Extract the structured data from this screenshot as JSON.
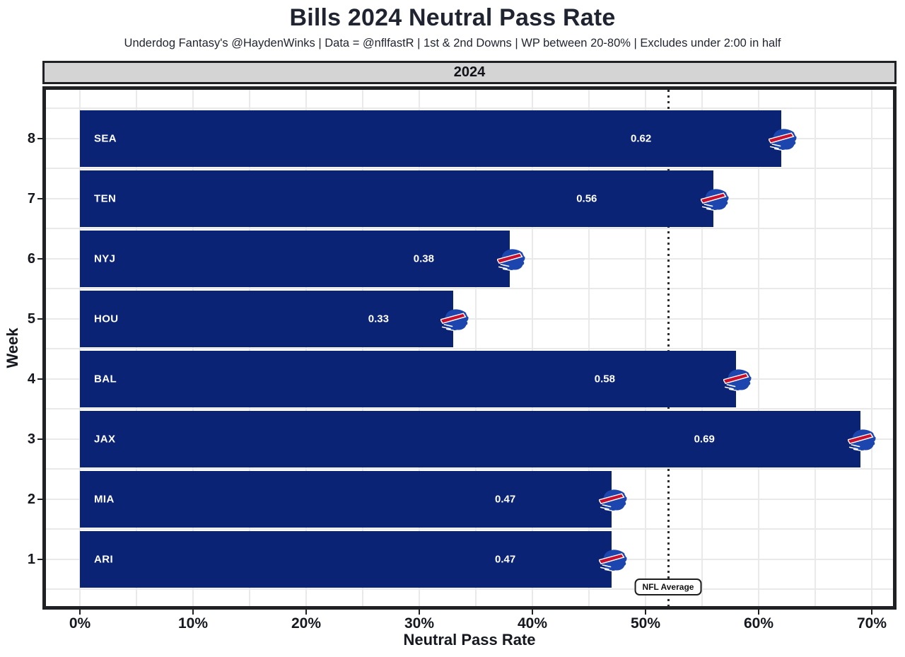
{
  "header": {
    "title": "Bills 2024 Neutral Pass Rate",
    "subtitle": "Underdog Fantasy's @HaydenWinks | Data = @nflfastR | 1st & 2nd Downs | WP between 20-80% | Excludes under 2:00 in half"
  },
  "facet": {
    "label": "2024"
  },
  "chart_data": {
    "type": "bar",
    "orientation": "horizontal",
    "title": "Bills 2024 Neutral Pass Rate",
    "xlabel": "Neutral Pass Rate",
    "ylabel": "Week",
    "xlim": [
      -0.03,
      0.72
    ],
    "x_major_step": 0.1,
    "x_minor_step": 0.05,
    "grid": true,
    "x_ticks": [
      {
        "label": "0%",
        "value": 0.0
      },
      {
        "label": "10%",
        "value": 0.1
      },
      {
        "label": "20%",
        "value": 0.2
      },
      {
        "label": "30%",
        "value": 0.3
      },
      {
        "label": "40%",
        "value": 0.4
      },
      {
        "label": "50%",
        "value": 0.5
      },
      {
        "label": "60%",
        "value": 0.6
      },
      {
        "label": "70%",
        "value": 0.7
      }
    ],
    "y_ticks": [
      "8",
      "7",
      "6",
      "5",
      "4",
      "3",
      "2",
      "1"
    ],
    "bars": [
      {
        "week": 8,
        "opponent": "SEA",
        "value": 0.62,
        "value_label": "0.62"
      },
      {
        "week": 7,
        "opponent": "TEN",
        "value": 0.56,
        "value_label": "0.56"
      },
      {
        "week": 6,
        "opponent": "NYJ",
        "value": 0.38,
        "value_label": "0.38"
      },
      {
        "week": 5,
        "opponent": "HOU",
        "value": 0.33,
        "value_label": "0.33"
      },
      {
        "week": 4,
        "opponent": "BAL",
        "value": 0.58,
        "value_label": "0.58"
      },
      {
        "week": 3,
        "opponent": "JAX",
        "value": 0.69,
        "value_label": "0.69"
      },
      {
        "week": 2,
        "opponent": "MIA",
        "value": 0.47,
        "value_label": "0.47"
      },
      {
        "week": 1,
        "opponent": "ARI",
        "value": 0.47,
        "value_label": "0.47"
      }
    ],
    "reference_line": {
      "value": 0.52,
      "label": "NFL Average"
    },
    "colors": {
      "bar": "#0b2375",
      "logo_blue": "#1c45ae",
      "logo_red": "#c8102e",
      "grid": "#e9e9e9",
      "strip_bg": "#d4d4d4",
      "border": "#1f2125",
      "text": "#1f2430"
    },
    "marker_icon": "bills-buffalo-logo-icon"
  }
}
